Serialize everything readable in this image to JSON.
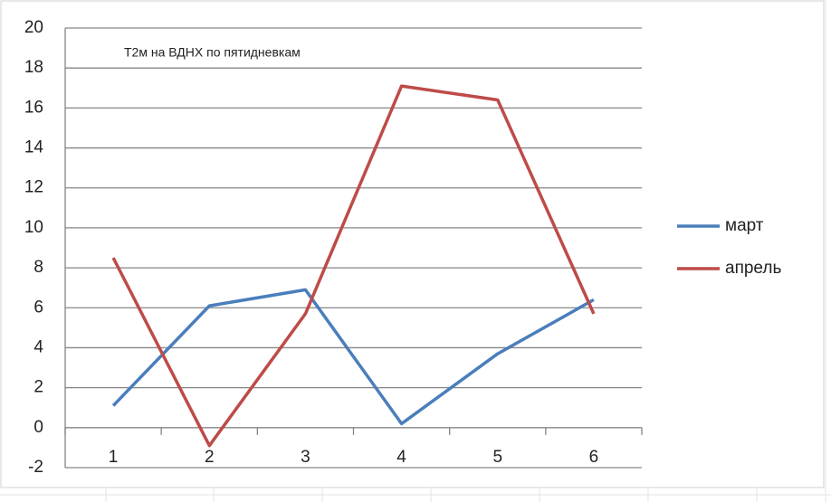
{
  "chart_data": {
    "type": "line",
    "title": "T2м на ВДНХ по пятидневкам",
    "categories": [
      "1",
      "2",
      "3",
      "4",
      "5",
      "6"
    ],
    "series": [
      {
        "name": "март",
        "color": "#4a7ebb",
        "values": [
          1.1,
          6.1,
          6.9,
          0.2,
          3.7,
          6.4
        ]
      },
      {
        "name": "апрель",
        "color": "#be4b48",
        "values": [
          8.5,
          -0.9,
          5.7,
          17.1,
          16.4,
          5.7
        ]
      }
    ],
    "ylim": [
      -2,
      20
    ],
    "yticks": [
      -2,
      0,
      2,
      4,
      6,
      8,
      10,
      12,
      14,
      16,
      18,
      20
    ],
    "grid": true,
    "legend": "right"
  }
}
